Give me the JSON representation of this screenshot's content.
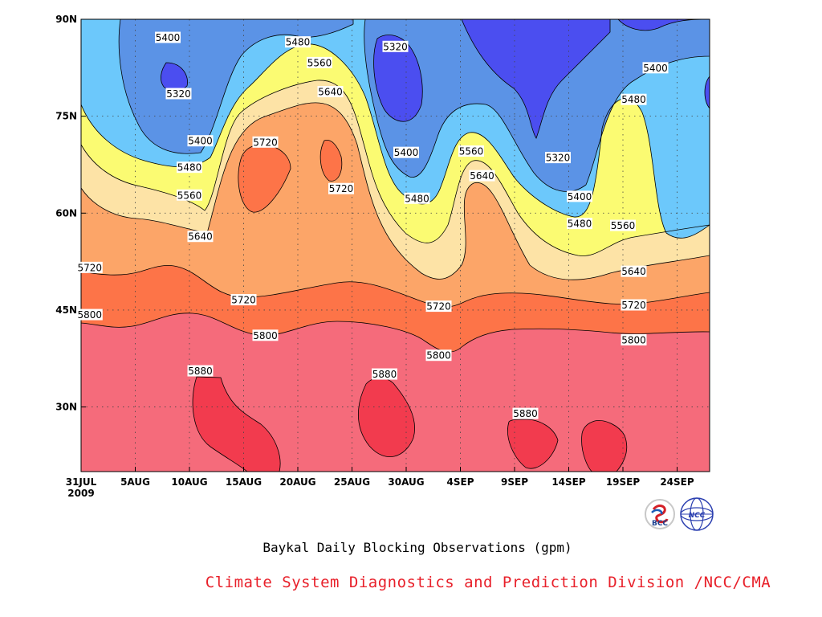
{
  "chart_data": {
    "type": "contour",
    "title": "Baykal Daily Blocking Observations (gpm)",
    "credit": "Climate System Diagnostics and Prediction Division /NCC/CMA",
    "x_axis": {
      "ticks": [
        "31JUL",
        "5AUG",
        "10AUG",
        "15AUG",
        "20AUG",
        "25AUG",
        "30AUG",
        "4SEP",
        "9SEP",
        "14SEP",
        "19SEP",
        "24SEP"
      ],
      "year_label": "2009",
      "range_days": [
        0,
        58
      ]
    },
    "y_axis": {
      "ticks": [
        "90N",
        "75N",
        "60N",
        "45N",
        "30N"
      ],
      "tick_values": [
        90,
        75,
        60,
        45,
        30
      ],
      "range": [
        20,
        90
      ]
    },
    "grid": true,
    "contour_levels": [
      5320,
      5400,
      5480,
      5560,
      5640,
      5720,
      5800,
      5880
    ],
    "fill_colors": {
      "below_5320": "#4b4ef0",
      "5320_5400": "#5b93e6",
      "5400_5480": "#6cc8fb",
      "5480_5560": "#fbfb72",
      "5560_5640": "#fde3a6",
      "5640_5720": "#fca568",
      "5720_5800": "#fd7448",
      "5800_5880": "#f56b7b",
      "above_5880": "#f23b4e"
    },
    "contour_labels": [
      {
        "text": "5400",
        "day": 8,
        "lat": 87.2
      },
      {
        "text": "5480",
        "day": 20,
        "lat": 86.5
      },
      {
        "text": "5320",
        "day": 29,
        "lat": 85.8
      },
      {
        "text": "5320",
        "day": 9,
        "lat": 78.5
      },
      {
        "text": "5560",
        "day": 22,
        "lat": 83.3
      },
      {
        "text": "5640",
        "day": 23,
        "lat": 78.8
      },
      {
        "text": "5400",
        "day": 11,
        "lat": 71.2
      },
      {
        "text": "5720",
        "day": 17,
        "lat": 71.0
      },
      {
        "text": "5480",
        "day": 10,
        "lat": 67.1
      },
      {
        "text": "5720",
        "day": 24,
        "lat": 63.8
      },
      {
        "text": "5400",
        "day": 30,
        "lat": 69.4
      },
      {
        "text": "5560",
        "day": 36,
        "lat": 69.6
      },
      {
        "text": "5320",
        "day": 44,
        "lat": 68.6
      },
      {
        "text": "5640",
        "day": 37,
        "lat": 65.8
      },
      {
        "text": "5480",
        "day": 31,
        "lat": 62.3
      },
      {
        "text": "5560",
        "day": 10,
        "lat": 62.8
      },
      {
        "text": "5400",
        "day": 46,
        "lat": 62.6
      },
      {
        "text": "5640",
        "day": 11,
        "lat": 56.4
      },
      {
        "text": "5480",
        "day": 46,
        "lat": 58.4
      },
      {
        "text": "5560",
        "day": 50,
        "lat": 58.1
      },
      {
        "text": "5400",
        "day": 53,
        "lat": 82.5
      },
      {
        "text": "5480",
        "day": 51,
        "lat": 77.6
      },
      {
        "text": "5720",
        "day": 0.8,
        "lat": 51.6
      },
      {
        "text": "5640",
        "day": 51,
        "lat": 51.0
      },
      {
        "text": "5720",
        "day": 15,
        "lat": 46.6
      },
      {
        "text": "5800",
        "day": 0.8,
        "lat": 44.3
      },
      {
        "text": "5720",
        "day": 33,
        "lat": 45.6
      },
      {
        "text": "5720",
        "day": 51,
        "lat": 45.8
      },
      {
        "text": "5800",
        "day": 17,
        "lat": 41.1
      },
      {
        "text": "5800",
        "day": 33,
        "lat": 38.0
      },
      {
        "text": "5800",
        "day": 51,
        "lat": 40.4
      },
      {
        "text": "5880",
        "day": 11,
        "lat": 35.6
      },
      {
        "text": "5880",
        "day": 28,
        "lat": 35.1
      },
      {
        "text": "5880",
        "day": 41,
        "lat": 29.0
      }
    ],
    "logos": [
      "BCC",
      "NCC"
    ]
  }
}
